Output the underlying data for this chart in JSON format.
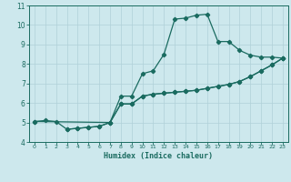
{
  "xlabel": "Humidex (Indice chaleur)",
  "bg_color": "#cde8ed",
  "grid_color": "#b0d0d8",
  "line_color": "#1a6b60",
  "xlim": [
    -0.5,
    23.5
  ],
  "ylim": [
    4,
    11
  ],
  "yticks": [
    4,
    5,
    6,
    7,
    8,
    9,
    10,
    11
  ],
  "xticks": [
    0,
    1,
    2,
    3,
    4,
    5,
    6,
    7,
    8,
    9,
    10,
    11,
    12,
    13,
    14,
    15,
    16,
    17,
    18,
    19,
    20,
    21,
    22,
    23
  ],
  "line1": {
    "x": [
      0,
      1,
      2,
      3,
      4,
      5,
      6,
      7,
      8,
      9,
      10,
      11,
      12,
      13,
      14,
      15,
      16,
      17,
      18,
      19,
      20,
      21,
      22,
      23
    ],
    "y": [
      5.05,
      5.1,
      5.05,
      4.65,
      4.7,
      4.75,
      4.8,
      5.0,
      6.35,
      6.35,
      7.5,
      7.65,
      8.5,
      10.3,
      10.35,
      10.5,
      10.55,
      9.15,
      9.15,
      8.7,
      8.45,
      8.35,
      8.35,
      8.3
    ]
  },
  "line2": {
    "x": [
      0,
      7,
      8,
      9,
      10,
      11,
      12,
      13,
      14,
      15,
      16,
      17,
      18,
      19,
      20,
      21,
      22,
      23
    ],
    "y": [
      5.05,
      5.0,
      5.95,
      5.95,
      6.35,
      6.45,
      6.5,
      6.55,
      6.6,
      6.65,
      6.75,
      6.85,
      6.95,
      7.1,
      7.35,
      7.65,
      7.95,
      8.3
    ]
  },
  "line3": {
    "x": [
      3,
      4,
      5,
      6,
      7,
      8,
      9,
      10,
      11,
      12,
      13,
      14,
      15,
      16,
      17,
      18,
      19,
      20,
      21,
      22,
      23
    ],
    "y": [
      4.65,
      4.7,
      4.75,
      4.8,
      5.0,
      5.95,
      5.95,
      6.35,
      6.45,
      6.5,
      6.55,
      6.6,
      6.65,
      6.75,
      6.85,
      6.95,
      7.1,
      7.35,
      7.65,
      7.95,
      8.3
    ]
  }
}
